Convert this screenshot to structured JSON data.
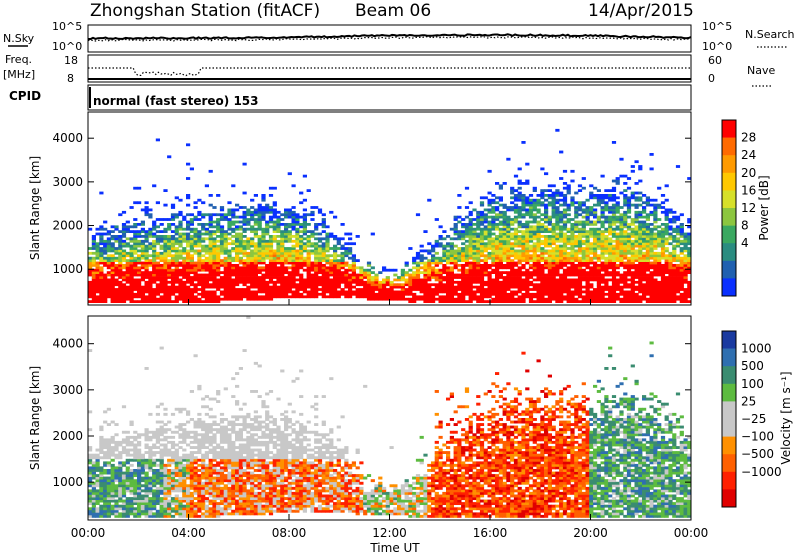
{
  "header": {
    "station": "Zhongshan Station (fitACF)",
    "beam": "Beam 06",
    "date": "14/Apr/2015"
  },
  "panels": {
    "nsky": {
      "label": "N.Sky",
      "ticks": [
        "10^5",
        "10^0"
      ],
      "right_label": "N.Search",
      "right_ticks": [
        "10^5",
        "10^0"
      ]
    },
    "freq": {
      "label_line1": "Freq.",
      "label_line2": "[MHz]",
      "ticks": [
        "18",
        "8"
      ],
      "right_label": "Nave",
      "right_ticks": [
        "60",
        "0"
      ]
    },
    "cpid": {
      "label": "CPID",
      "text": "normal (fast stereo) 153"
    }
  },
  "chart_data": [
    {
      "type": "heatmap",
      "name": "power",
      "ylabel": "Slant Range [km]",
      "ylim": [
        180,
        4600
      ],
      "yticks": [
        1000,
        2000,
        3000,
        4000
      ],
      "colorbar": {
        "label": "Power [dB]",
        "ticks": [
          "28",
          "24",
          "20",
          "16",
          "12",
          "8",
          "4"
        ],
        "colors": [
          "#ff0000",
          "#ff6a00",
          "#ff9a00",
          "#ffc800",
          "#d6e02a",
          "#8cc63f",
          "#3aa860",
          "#2a8c80",
          "#2060b0",
          "#0a30ff"
        ]
      }
    },
    {
      "type": "heatmap",
      "name": "velocity",
      "ylabel": "Slant Range [km]",
      "ylim": [
        180,
        4600
      ],
      "yticks": [
        1000,
        2000,
        3000,
        4000
      ],
      "xlabel": "Time UT",
      "xticks": [
        "00:00",
        "04:00",
        "08:00",
        "12:00",
        "16:00",
        "20:00",
        "00:00"
      ],
      "colorbar": {
        "label": "Velocity [m s⁻¹]",
        "ticks": [
          "1000",
          "500",
          "100",
          "25",
          "−25",
          "−100",
          "−500",
          "−1000"
        ],
        "colors": [
          "#1a3aa0",
          "#2f6fb0",
          "#3a8c70",
          "#5dbb40",
          "#c8c8c8",
          "#c8c8c8",
          "#ff9000",
          "#ff6000",
          "#ff2000",
          "#e00000"
        ]
      }
    }
  ]
}
